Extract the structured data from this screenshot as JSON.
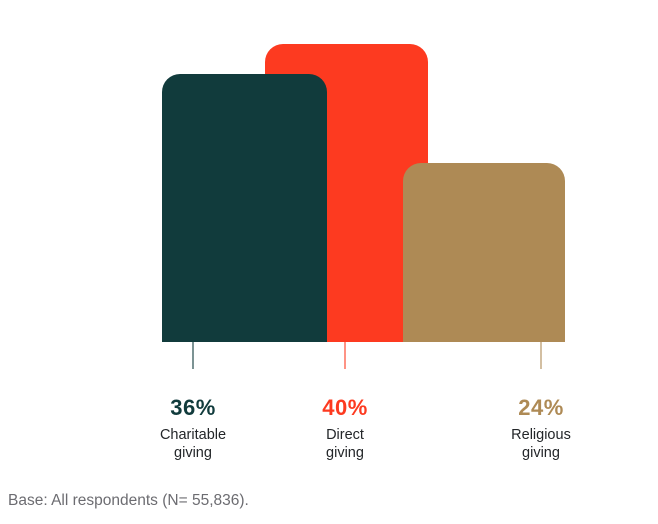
{
  "chart_data": {
    "type": "bar",
    "title": "",
    "categories": [
      "Charitable giving",
      "Direct giving",
      "Religious giving"
    ],
    "values": [
      36,
      40,
      24
    ],
    "value_labels": [
      "36%",
      "40%",
      "24%"
    ],
    "colors": [
      "#113B3C",
      "#FD3A20",
      "#AE8A55"
    ],
    "xlabel": "",
    "ylabel": "",
    "ylim": [
      0,
      40
    ],
    "grid": false,
    "legend": "none",
    "note": "Base: All respondents (N= 55,836)."
  },
  "text_colors": {
    "category_label": "#232629",
    "note": "#6C6C71"
  }
}
